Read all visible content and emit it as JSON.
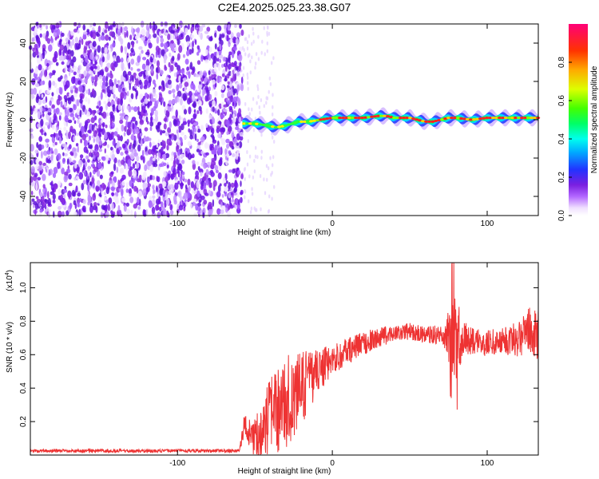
{
  "title": "C2E4.2025.025.23.38.G07",
  "chart_data": [
    {
      "type": "heatmap",
      "xlabel": "Height of straight line (km)",
      "ylabel": "Frequency (Hz)",
      "xlim": [
        -195,
        133
      ],
      "ylim": [
        -50,
        50
      ],
      "xticks": [
        -100,
        0,
        100
      ],
      "yticks": [
        -40,
        -20,
        0,
        20,
        40
      ],
      "noise_region_x": [
        -195,
        -58
      ],
      "signal_trace": {
        "x": [
          -58,
          -50,
          -42,
          -36,
          -30,
          -22,
          -15,
          -8,
          0,
          10,
          20,
          30,
          35,
          40,
          45,
          50,
          55,
          60,
          65,
          70,
          75,
          80,
          90,
          100,
          110,
          120,
          133
        ],
        "y": [
          -2,
          -2,
          -3,
          -4,
          -3,
          -1,
          -1,
          0,
          1,
          1,
          1,
          2,
          2,
          1,
          1,
          1,
          0,
          -1,
          -1,
          0,
          1,
          1,
          0,
          1,
          1,
          1,
          1
        ]
      },
      "colorbar": {
        "label": "Normalized spectral amplitude",
        "ticks": [
          0.0,
          0.2,
          0.4,
          0.6,
          0.8
        ],
        "range": [
          0,
          1
        ]
      }
    },
    {
      "type": "line",
      "xlabel": "Height of straight line (km)",
      "ylabel": "SNR (10 * v/v)",
      "yscale_label": "(x10",
      "yscale_exp": "4",
      "yscale_close": ")",
      "xlim": [
        -195,
        133
      ],
      "ylim": [
        0,
        1.15
      ],
      "xticks": [
        -100,
        0,
        100
      ],
      "yticks": [
        0.2,
        0.4,
        0.6,
        0.8,
        1.0
      ],
      "color": "#ee3333",
      "envelope": {
        "x": [
          -195,
          -60,
          -57,
          -52,
          -48,
          -40,
          -30,
          -22,
          -15,
          -10,
          -5,
          0,
          10,
          20,
          30,
          40,
          50,
          60,
          70,
          75,
          78,
          80,
          85,
          90,
          100,
          110,
          120,
          125,
          133
        ],
        "y": [
          0.025,
          0.025,
          0.18,
          0.1,
          0.12,
          0.22,
          0.32,
          0.37,
          0.45,
          0.5,
          0.53,
          0.57,
          0.62,
          0.67,
          0.7,
          0.73,
          0.74,
          0.72,
          0.72,
          0.7,
          0.72,
          0.68,
          0.7,
          0.68,
          0.67,
          0.68,
          0.7,
          0.75,
          0.72
        ]
      },
      "amplitude": {
        "x": [
          -195,
          -60,
          -57,
          -52,
          -40,
          -30,
          -20,
          -10,
          0,
          20,
          40,
          60,
          72,
          76,
          80,
          84,
          90,
          110,
          125,
          133
        ],
        "y": [
          0.01,
          0.01,
          0.07,
          0.1,
          0.24,
          0.28,
          0.22,
          0.14,
          0.09,
          0.07,
          0.05,
          0.05,
          0.06,
          0.22,
          0.28,
          0.12,
          0.08,
          0.08,
          0.14,
          0.16
        ]
      }
    }
  ]
}
